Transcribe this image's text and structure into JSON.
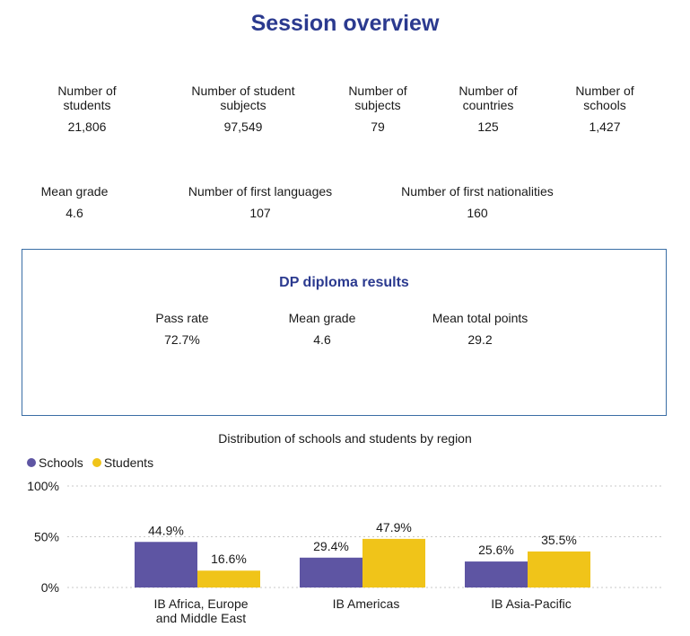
{
  "page": {
    "title": "Session overview"
  },
  "stats_row1": [
    {
      "label": "Number of students",
      "value": "21,806"
    },
    {
      "label": "Number of student subjects",
      "value": "97,549"
    },
    {
      "label": "Number of subjects",
      "value": "79"
    },
    {
      "label": "Number of countries",
      "value": "125"
    },
    {
      "label": "Number of schools",
      "value": "1,427"
    }
  ],
  "stats_row2": [
    {
      "label": "Mean grade",
      "value": "4.6"
    },
    {
      "label": "Number of first languages",
      "value": "107"
    },
    {
      "label": "Number of first nationalities",
      "value": "160"
    }
  ],
  "dp_results": {
    "title": "DP diploma results",
    "items": [
      {
        "label": "Pass rate",
        "value": "72.7%"
      },
      {
        "label": "Mean grade",
        "value": "4.6"
      },
      {
        "label": "Mean total points",
        "value": "29.2"
      }
    ]
  },
  "chart_data": {
    "type": "bar",
    "title": "Distribution of schools and students by region",
    "categories": [
      "IB Africa, Europe and Middle East",
      "IB Americas",
      "IB Asia-Pacific"
    ],
    "series": [
      {
        "name": "Schools",
        "values": [
          44.9,
          29.4,
          25.6
        ],
        "labels": [
          "44.9%",
          "29.4%",
          "25.6%"
        ],
        "color": "#5e55a3"
      },
      {
        "name": "Students",
        "values": [
          16.6,
          47.9,
          35.5
        ],
        "labels": [
          "16.6%",
          "47.9%",
          "35.5%"
        ],
        "color": "#f0c419"
      }
    ],
    "y_ticks": [
      "0%",
      "50%",
      "100%"
    ],
    "ylim": [
      0,
      100
    ],
    "grid": true,
    "legend": "top-left"
  }
}
